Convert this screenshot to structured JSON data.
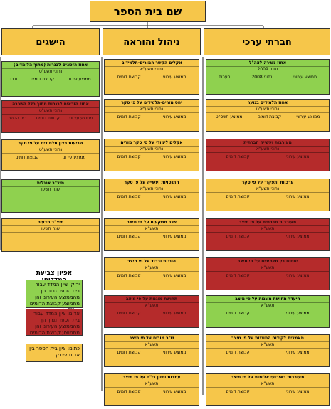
{
  "title": "שם בית הספר",
  "columns": [
    {
      "key": "achievements",
      "title": "הישגים"
    },
    {
      "key": "management",
      "title": "ניהול והוראה"
    },
    {
      "key": "social",
      "title": "חברתי ערכי"
    }
  ],
  "cards": [
    {
      "color": "green",
      "header": "אחוז הזכאים לבגרות (מתוך הלומדים)",
      "sub": "נתוני תשע\"ט",
      "row": [
        "ממוצע עירוני",
        "קבוצת דומים",
        "ודרו"
      ]
    },
    {
      "color": "red",
      "header": "אחוז הזכאים לבגרות מתוך כלל השכבה",
      "sub": "נתוני תשע\"ט",
      "row": [
        "ממוצע עירוני",
        "קבוצת דומים",
        "בית הספר"
      ]
    },
    {
      "color": "yellow",
      "header": "שביעות רצון תלמידים על פי סקר",
      "sub": "נתוני תשע\"ט",
      "row": [
        "ממוצע עירוני",
        "קבוצת דומים"
      ]
    },
    {
      "color": "green",
      "header": "מיצ\"ב אנגלית",
      "sub": "שנה   תשעו",
      "row": [
        "",
        "",
        ""
      ]
    },
    {
      "color": "yellow",
      "header": "מיצ\"ב מדעים",
      "sub": "שנה   תשעו",
      "row": [
        "",
        "",
        ""
      ]
    },
    {
      "color": "yellow",
      "header": "אקלים הקשר המורים-תלמידים",
      "sub": "נתוני תשע\"א",
      "row": [
        "ממוצע עירוני",
        "קבוצת דומים"
      ]
    },
    {
      "color": "yellow",
      "header": "יחס מורים-תלמידים על פי סקר",
      "sub": "נתוני תשע\"א",
      "row": [
        "ממוצע עירוני",
        "קבוצת דומים"
      ]
    },
    {
      "color": "yellow",
      "header": "אקלים לימודי על פי סקר מורים",
      "sub": "נתוני תשע\"א",
      "row": [
        "ממוצע עירוני",
        "קבוצת דומים"
      ]
    },
    {
      "color": "yellow",
      "header": "התנסויות ועשייה על פי סקר",
      "sub": "נתוני תשע\"א",
      "row": [
        "ממוצע עירוני",
        "קבוצת דומים"
      ]
    },
    {
      "color": "yellow",
      "header": "שגב משקעים על פי מיצב",
      "sub": "תשע\"א",
      "row": [
        "ממוצע עירוני",
        "קבוצת דומים"
      ]
    },
    {
      "color": "yellow",
      "header": "הוגנות ובבוד על פי מיצב",
      "sub": "תשע\"א",
      "row": [
        "ממוצע עירוני",
        "קבוצת דומים"
      ]
    },
    {
      "color": "red",
      "header": "תחושת מוגנות על פי מיצב",
      "sub": "תשע\"א",
      "row": [
        "ממוצע עירוני",
        "קבוצת דומים"
      ]
    },
    {
      "color": "yellow",
      "header": "ש\"ר מורים על פי מיצב",
      "sub": "תשע\"א",
      "row": [
        "ממוצע עירוני",
        "קבוצת דומים"
      ]
    },
    {
      "color": "yellow",
      "header": "עמדות וחזון בי\"ס על פי מיצב",
      "sub": "תשע\"א",
      "row": [
        "ממוצע עירוני",
        "קבוצת דומים"
      ]
    },
    {
      "color": "green",
      "header": "אחוז נשירה לצה\"ל",
      "sub": "נתוני 2009",
      "row": [
        "ממוצע עירוני",
        "נתוני 2008",
        "הערות"
      ]
    },
    {
      "color": "yellow",
      "header": "אחוז תלמידים בנוער",
      "sub": "נתוני תשע\"ט",
      "row": [
        "ממוצע עירוני",
        "קבוצת דומים",
        "ממוצע תשס\"ט"
      ]
    },
    {
      "color": "red",
      "header": "מעורבות ועשייה חברתית",
      "sub": "נתוני תשע\"א",
      "row": [
        "ממוצע עירוני",
        "קבוצת דומים"
      ]
    },
    {
      "color": "yellow",
      "header": "ערכיות ותפקוד על פי סקר",
      "sub": "נתוני תשע\"א",
      "row": [
        "ממוצע עירוני",
        "קבוצת דומים"
      ]
    },
    {
      "color": "red",
      "header": "מעורבות חברתית על פי מיצב",
      "sub": "תשע\"א",
      "row": [
        "ממוצע עירוני",
        "קבוצת דומים"
      ]
    },
    {
      "color": "red",
      "header": "יחסים בין תלמידים על פי מיצב",
      "sub": "תשע\"א",
      "row": [
        "ממוצע עירוני",
        "קבוצת דומים"
      ]
    },
    {
      "color": "green",
      "header": "היעדר תחושת מוגנות על פי מיצב",
      "sub": "תשע\"א",
      "row": [
        "ממוצע עירוני",
        "קבוצת דומים"
      ]
    },
    {
      "color": "yellow",
      "header": "מאמצים לקידום המוגנות על פי מיצב",
      "sub": "תשע\"א",
      "row": [
        "ממוצע עירוני",
        "קבוצת דומים"
      ]
    },
    {
      "color": "yellow",
      "header": "מעורבות באירועי אלימות על פי מיצב",
      "sub": "תשע\"א",
      "row": [
        "ממוצע עירוני",
        "קבוצת דומים"
      ]
    }
  ],
  "legend": {
    "title": "אפיון צביעת המדדים:",
    "green": "ירוק: ציון המדד עבור בית הספר גבוה הן מהממוצע העירוני והן מממוצע קבוצת הדומים ב-5% לפחות",
    "red": "אדום: ציון המדד עבור בית הספר נמוך הן מהממוצע העירוני והן מממוצע קבוצת הדומים",
    "yellow": "כתום: ציון בית הספר בין אדום לירוק."
  }
}
